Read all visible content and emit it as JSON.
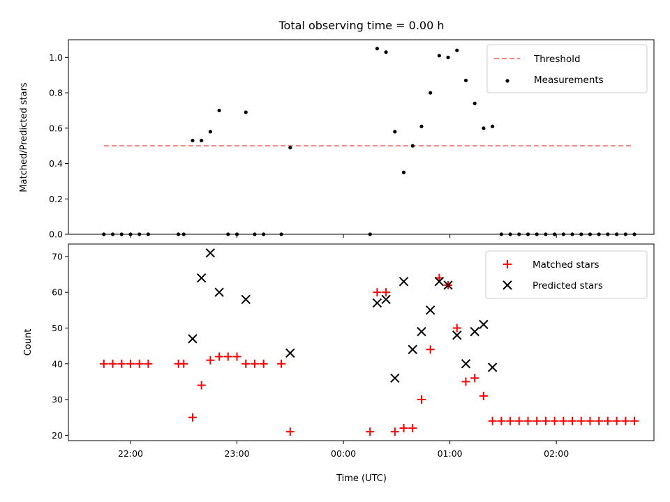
{
  "title": "Total observing time = 0.00 h",
  "colors": {
    "threshold": "#ff7f7f",
    "measurement": "#000000",
    "matched": "#ff0000",
    "predicted": "#000000"
  },
  "chart_data": [
    {
      "type": "scatter",
      "ylabel": "Matched/Predicted stars",
      "ylim": [
        0,
        1.1
      ],
      "xlim": [
        "21:25",
        "02:55"
      ],
      "yticks": [
        "0.0",
        "0.2",
        "0.4",
        "0.6",
        "0.8",
        "1.0"
      ],
      "legend_position": "top-right",
      "series": [
        {
          "name": "Threshold",
          "kind": "line",
          "style": "dashed",
          "x": [
            "21:45",
            "02:42"
          ],
          "y": [
            0.5,
            0.5
          ]
        },
        {
          "name": "Measurements",
          "kind": "scatter",
          "x": [
            "21:45",
            "21:50",
            "21:55",
            "22:00",
            "22:05",
            "22:10",
            "22:27",
            "22:30",
            "22:35",
            "22:40",
            "22:45",
            "22:50",
            "22:55",
            "23:00",
            "23:05",
            "23:10",
            "23:15",
            "23:25",
            "23:30",
            "00:15",
            "00:19",
            "00:24",
            "00:29",
            "00:34",
            "00:39",
            "00:44",
            "00:49",
            "00:54",
            "00:59",
            "01:04",
            "01:09",
            "01:14",
            "01:19",
            "01:24",
            "01:29",
            "01:34",
            "01:39",
            "01:44",
            "01:49",
            "01:54",
            "01:59",
            "02:04",
            "02:09",
            "02:14",
            "02:19",
            "02:24",
            "02:29",
            "02:34",
            "02:39",
            "02:44"
          ],
          "y": [
            0,
            0,
            0,
            0,
            0,
            0,
            0,
            0,
            0.53,
            0.53,
            0.58,
            0.7,
            0,
            0,
            0.69,
            0,
            0,
            0,
            0.49,
            0,
            1.05,
            1.03,
            0.58,
            0.35,
            0.5,
            0.61,
            0.8,
            1.01,
            1.0,
            1.04,
            0.87,
            0.74,
            0.6,
            0.61,
            0,
            0,
            0,
            0,
            0,
            0,
            0,
            0,
            0,
            0,
            0,
            0,
            0,
            0,
            0,
            0
          ]
        }
      ]
    },
    {
      "type": "scatter",
      "xlabel": "Time (UTC)",
      "ylabel": "Count",
      "ylim": [
        18.5,
        73.5
      ],
      "xlim": [
        "21:25",
        "02:55"
      ],
      "yticks": [
        "20",
        "30",
        "40",
        "50",
        "60",
        "70"
      ],
      "xticks": [
        "22:00",
        "23:00",
        "00:00",
        "01:00",
        "02:00"
      ],
      "legend_position": "top-right",
      "series": [
        {
          "name": "Matched stars",
          "marker": "+",
          "x": [
            "21:45",
            "21:50",
            "21:55",
            "22:00",
            "22:05",
            "22:10",
            "22:27",
            "22:30",
            "22:35",
            "22:40",
            "22:45",
            "22:50",
            "22:55",
            "23:00",
            "23:05",
            "23:10",
            "23:15",
            "23:25",
            "23:30",
            "00:15",
            "00:19",
            "00:24",
            "00:29",
            "00:34",
            "00:39",
            "00:44",
            "00:49",
            "00:54",
            "00:59",
            "01:04",
            "01:09",
            "01:14",
            "01:19",
            "01:24",
            "01:29",
            "01:34",
            "01:39",
            "01:44",
            "01:49",
            "01:54",
            "01:59",
            "02:04",
            "02:09",
            "02:14",
            "02:19",
            "02:24",
            "02:29",
            "02:34",
            "02:39",
            "02:44"
          ],
          "y": [
            40,
            40,
            40,
            40,
            40,
            40,
            40,
            40,
            25,
            34,
            41,
            42,
            42,
            42,
            40,
            40,
            40,
            40,
            21,
            21,
            60,
            60,
            21,
            22,
            22,
            30,
            44,
            64,
            62,
            50,
            35,
            36,
            31,
            24,
            24,
            24,
            24,
            24,
            24,
            24,
            24,
            24,
            24,
            24,
            24,
            24,
            24,
            24,
            24,
            24
          ]
        },
        {
          "name": "Predicted stars",
          "marker": "x",
          "x": [
            "22:35",
            "22:40",
            "22:45",
            "22:50",
            "23:05",
            "23:30",
            "00:19",
            "00:24",
            "00:29",
            "00:34",
            "00:39",
            "00:44",
            "00:49",
            "00:54",
            "00:59",
            "01:04",
            "01:09",
            "01:14",
            "01:19",
            "01:24"
          ],
          "y": [
            47,
            64,
            71,
            60,
            58,
            43,
            57,
            58,
            36,
            63,
            44,
            49,
            55,
            63,
            62,
            48,
            40,
            49,
            51,
            39
          ]
        }
      ]
    }
  ]
}
